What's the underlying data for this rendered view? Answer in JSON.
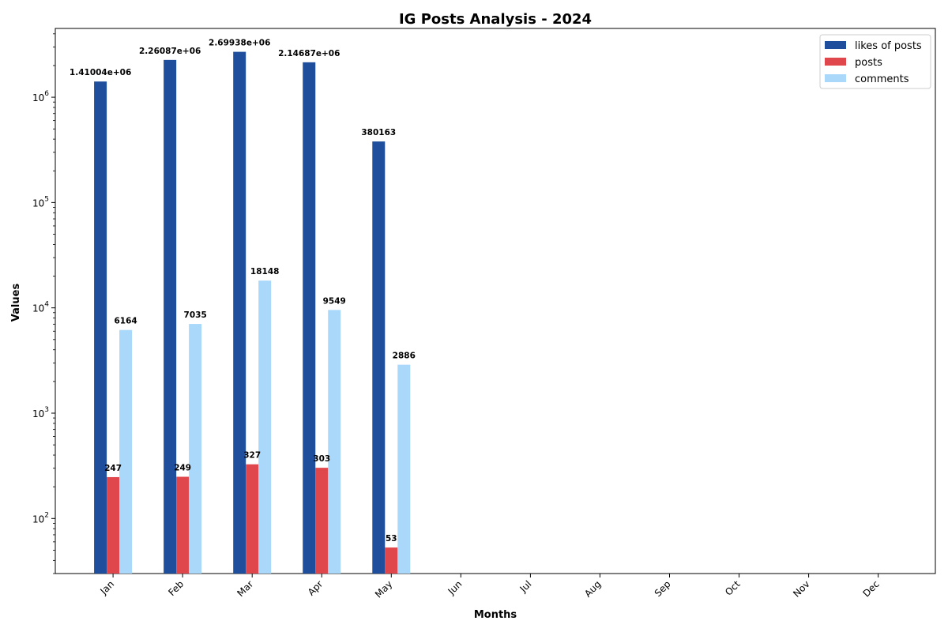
{
  "chart_data": {
    "type": "bar",
    "title": "IG Posts Analysis - 2024",
    "xlabel": "Months",
    "ylabel": "Values",
    "yscale": "log",
    "ylim": [
      30,
      4500000
    ],
    "y_ticks": [
      100,
      1000,
      10000,
      100000,
      1000000
    ],
    "y_tick_labels": [
      {
        "base": "10",
        "exp": "2"
      },
      {
        "base": "10",
        "exp": "3"
      },
      {
        "base": "10",
        "exp": "4"
      },
      {
        "base": "10",
        "exp": "5"
      },
      {
        "base": "10",
        "exp": "6"
      }
    ],
    "categories": [
      "Jan",
      "Feb",
      "Mar",
      "Apr",
      "May",
      "Jun",
      "Jul",
      "Aug",
      "Sep",
      "Oct",
      "Nov",
      "Dec"
    ],
    "series": [
      {
        "name": "likes of posts",
        "color": "#1f4e9c",
        "values": [
          1410040,
          2260870,
          2699380,
          2146870,
          380163,
          null,
          null,
          null,
          null,
          null,
          null,
          null
        ],
        "labels": [
          "1.41004e+06",
          "2.26087e+06",
          "2.69938e+06",
          "2.14687e+06",
          "380163"
        ]
      },
      {
        "name": "posts",
        "color": "#e0474c",
        "values": [
          247,
          249,
          327,
          303,
          53,
          null,
          null,
          null,
          null,
          null,
          null,
          null
        ],
        "labels": [
          "247",
          "249",
          "327",
          "303",
          "53"
        ]
      },
      {
        "name": "comments",
        "color": "#aad8fb",
        "values": [
          6164,
          7035,
          18148,
          9549,
          2886,
          null,
          null,
          null,
          null,
          null,
          null,
          null
        ],
        "labels": [
          "6164",
          "7035",
          "18148",
          "9549",
          "2886"
        ]
      }
    ],
    "legend": "top-right",
    "grid": false
  }
}
